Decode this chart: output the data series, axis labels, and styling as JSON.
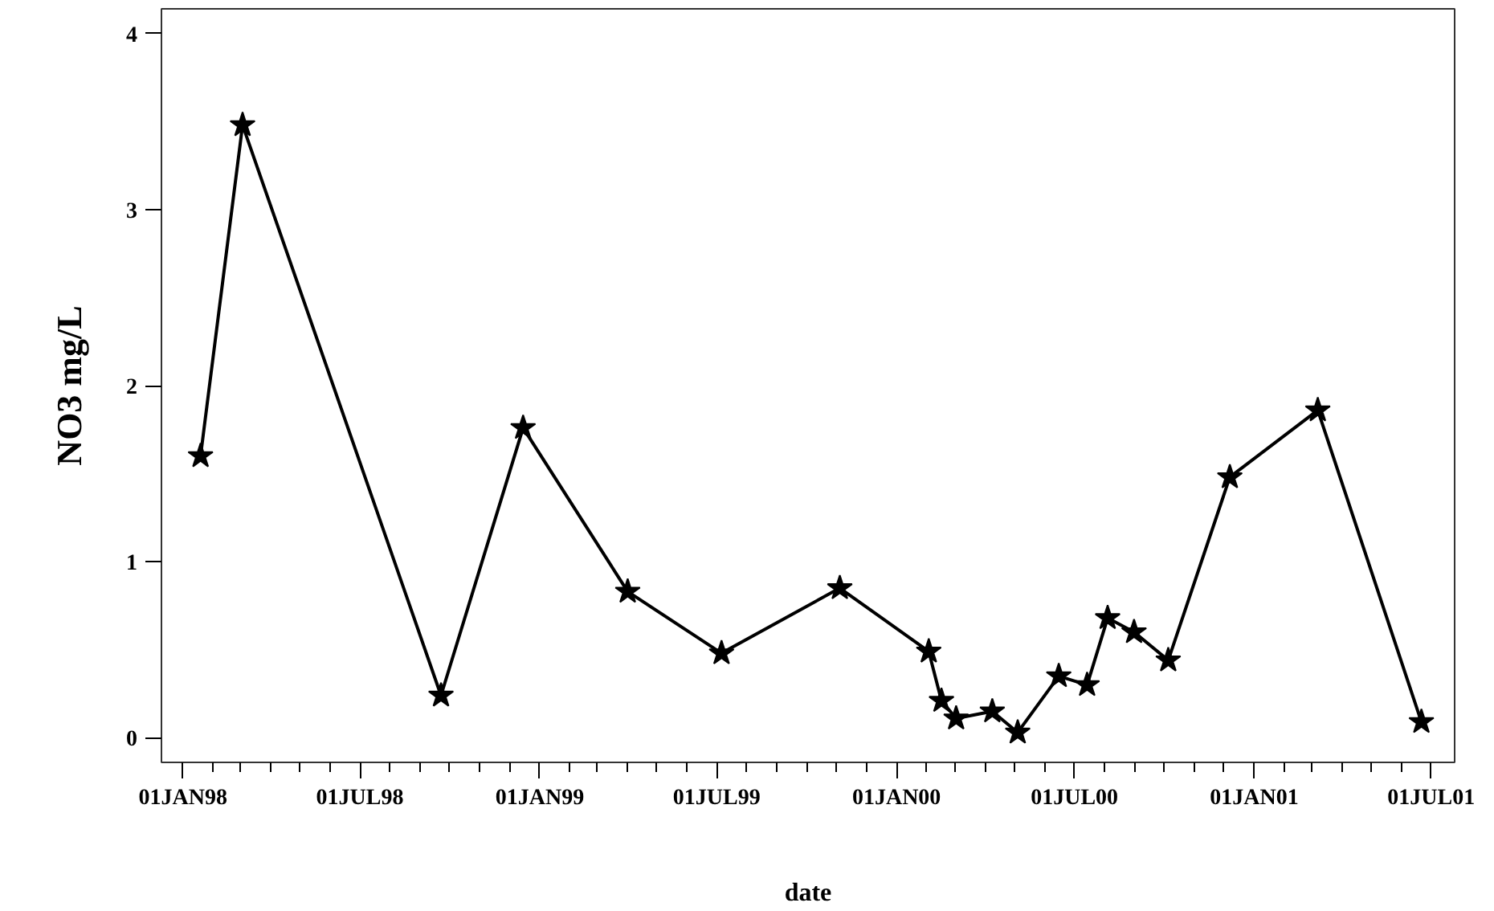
{
  "chart_data": {
    "type": "line",
    "xlabel": "date",
    "ylabel": "NO3 mg/L",
    "marker": "star",
    "line_style": "solid",
    "grid": false,
    "x": [
      "1998-01-19",
      "1998-03-03",
      "1998-09-22",
      "1998-12-15",
      "1999-04-01",
      "1999-07-06",
      "1999-11-04",
      "2000-02-03",
      "2000-02-16",
      "2000-03-02",
      "2000-04-08",
      "2000-05-04",
      "2000-06-15",
      "2000-07-14",
      "2000-08-04",
      "2000-08-31",
      "2000-10-05",
      "2000-12-07",
      "2001-03-07",
      "2001-06-21"
    ],
    "series": [
      {
        "color": "#000000",
        "values": [
          1.6,
          3.48,
          0.24,
          1.76,
          0.83,
          0.48,
          0.85,
          0.49,
          0.21,
          0.11,
          0.15,
          0.03,
          0.35,
          0.3,
          0.68,
          0.6,
          0.44,
          1.48,
          1.86,
          0.09
        ]
      }
    ],
    "xlim": [
      "1997-12-10",
      "2001-07-25"
    ],
    "xticks": [
      {
        "value": "1998-01-01",
        "label": "01JAN98"
      },
      {
        "value": "1998-02-01",
        "label": null
      },
      {
        "value": "1998-03-01",
        "label": null
      },
      {
        "value": "1998-04-01",
        "label": null
      },
      {
        "value": "1998-05-01",
        "label": null
      },
      {
        "value": "1998-06-01",
        "label": null
      },
      {
        "value": "1998-07-01",
        "label": "01JUL98"
      },
      {
        "value": "1998-08-01",
        "label": null
      },
      {
        "value": "1998-09-01",
        "label": null
      },
      {
        "value": "1998-10-01",
        "label": null
      },
      {
        "value": "1998-11-01",
        "label": null
      },
      {
        "value": "1998-12-01",
        "label": null
      },
      {
        "value": "1999-01-01",
        "label": "01JAN99"
      },
      {
        "value": "1999-02-01",
        "label": null
      },
      {
        "value": "1999-03-01",
        "label": null
      },
      {
        "value": "1999-04-01",
        "label": null
      },
      {
        "value": "1999-05-01",
        "label": null
      },
      {
        "value": "1999-06-01",
        "label": null
      },
      {
        "value": "1999-07-01",
        "label": "01JUL99"
      },
      {
        "value": "1999-08-01",
        "label": null
      },
      {
        "value": "1999-09-01",
        "label": null
      },
      {
        "value": "1999-10-01",
        "label": null
      },
      {
        "value": "1999-11-01",
        "label": null
      },
      {
        "value": "1999-12-01",
        "label": null
      },
      {
        "value": "2000-01-01",
        "label": "01JAN00"
      },
      {
        "value": "2000-02-01",
        "label": null
      },
      {
        "value": "2000-03-01",
        "label": null
      },
      {
        "value": "2000-04-01",
        "label": null
      },
      {
        "value": "2000-05-01",
        "label": null
      },
      {
        "value": "2000-06-01",
        "label": null
      },
      {
        "value": "2000-07-01",
        "label": "01JUL00"
      },
      {
        "value": "2000-08-01",
        "label": null
      },
      {
        "value": "2000-09-01",
        "label": null
      },
      {
        "value": "2000-10-01",
        "label": null
      },
      {
        "value": "2000-11-01",
        "label": null
      },
      {
        "value": "2000-12-01",
        "label": null
      },
      {
        "value": "2001-01-01",
        "label": "01JAN01"
      },
      {
        "value": "2001-02-01",
        "label": null
      },
      {
        "value": "2001-03-01",
        "label": null
      },
      {
        "value": "2001-04-01",
        "label": null
      },
      {
        "value": "2001-05-01",
        "label": null
      },
      {
        "value": "2001-06-01",
        "label": null
      },
      {
        "value": "2001-07-01",
        "label": "01JUL01"
      }
    ],
    "ylim": [
      -0.14,
      4.14
    ],
    "yticks": [
      0,
      1,
      2,
      3,
      4
    ]
  }
}
